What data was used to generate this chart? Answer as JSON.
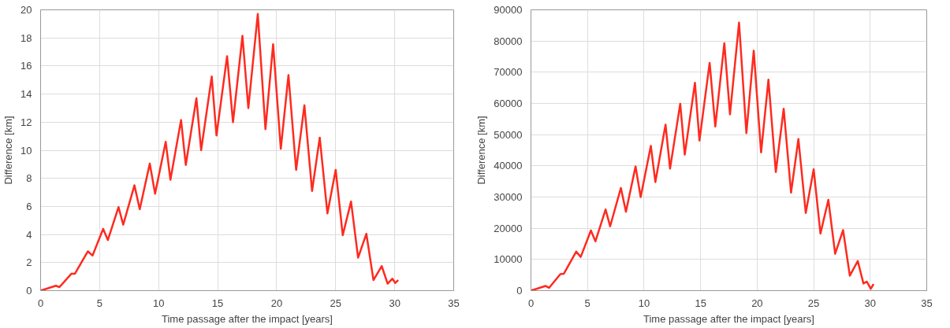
{
  "chart_data": [
    {
      "type": "line",
      "xlabel": "Time passage after the impact [years]",
      "ylabel": "Difference [km]",
      "xlim": [
        0,
        35
      ],
      "xticks": [
        0,
        5,
        10,
        15,
        20,
        25,
        30,
        35
      ],
      "ylim": [
        0,
        20
      ],
      "yticks": [
        0,
        2,
        4,
        6,
        8,
        10,
        12,
        14,
        16,
        18,
        20
      ],
      "grid": true,
      "line_style": "solid",
      "series": [
        {
          "color": "#ff2a1f",
          "x": [
            0,
            1.3,
            1.6,
            2.6,
            2.9,
            4.0,
            4.4,
            5.3,
            5.7,
            6.6,
            7.0,
            7.95,
            8.4,
            9.25,
            9.7,
            10.6,
            11.0,
            11.9,
            12.3,
            13.2,
            13.6,
            14.5,
            14.9,
            15.8,
            16.3,
            17.1,
            17.6,
            18.4,
            19.05,
            19.7,
            20.35,
            21.0,
            21.65,
            22.35,
            23.0,
            23.65,
            24.3,
            25.0,
            25.6,
            26.3,
            26.9,
            27.6,
            28.2,
            28.9,
            29.4,
            29.8,
            30.05,
            30.3
          ],
          "values": [
            0,
            0.35,
            0.25,
            1.2,
            1.2,
            2.8,
            2.5,
            4.4,
            3.6,
            5.95,
            4.7,
            7.5,
            5.8,
            9.05,
            6.9,
            10.6,
            7.9,
            12.15,
            8.95,
            13.7,
            10.0,
            15.25,
            11.05,
            16.7,
            12.0,
            18.15,
            13.0,
            19.7,
            11.5,
            17.55,
            10.1,
            15.35,
            8.6,
            13.2,
            7.1,
            10.9,
            5.5,
            8.6,
            3.95,
            6.35,
            2.35,
            4.05,
            0.75,
            1.75,
            0.5,
            0.85,
            0.55,
            0.75
          ]
        }
      ]
    },
    {
      "type": "line",
      "xlabel": "Time passage after the impact [years]",
      "ylabel": "Difference [km]",
      "xlim": [
        0,
        35
      ],
      "xticks": [
        0,
        5,
        10,
        15,
        20,
        25,
        30,
        35
      ],
      "ylim": [
        0,
        90000
      ],
      "yticks": [
        0,
        10000,
        20000,
        30000,
        40000,
        50000,
        60000,
        70000,
        80000,
        90000
      ],
      "grid": true,
      "line_style": "solid",
      "series": [
        {
          "color": "#ff2a1f",
          "x": [
            0,
            1.3,
            1.6,
            2.6,
            2.9,
            4.0,
            4.4,
            5.3,
            5.7,
            6.6,
            7.0,
            7.95,
            8.4,
            9.25,
            9.7,
            10.6,
            11.0,
            11.9,
            12.3,
            13.2,
            13.6,
            14.5,
            14.9,
            15.8,
            16.3,
            17.1,
            17.6,
            18.4,
            19.05,
            19.7,
            20.35,
            21.0,
            21.65,
            22.35,
            23.0,
            23.65,
            24.3,
            25.0,
            25.6,
            26.3,
            26.9,
            27.6,
            28.2,
            28.9,
            29.4,
            29.7,
            30.05,
            30.3
          ],
          "values": [
            0,
            1500,
            900,
            5300,
            5400,
            12500,
            10800,
            19300,
            15800,
            26000,
            20600,
            32900,
            25300,
            39800,
            30000,
            46400,
            34800,
            53200,
            39100,
            59900,
            43600,
            66600,
            48100,
            73000,
            52600,
            79300,
            56500,
            85900,
            50500,
            76900,
            44300,
            67600,
            38000,
            58300,
            31400,
            48600,
            24900,
            38900,
            18300,
            29100,
            11800,
            19400,
            4800,
            9500,
            2300,
            2900,
            600,
            2100
          ]
        }
      ]
    }
  ]
}
